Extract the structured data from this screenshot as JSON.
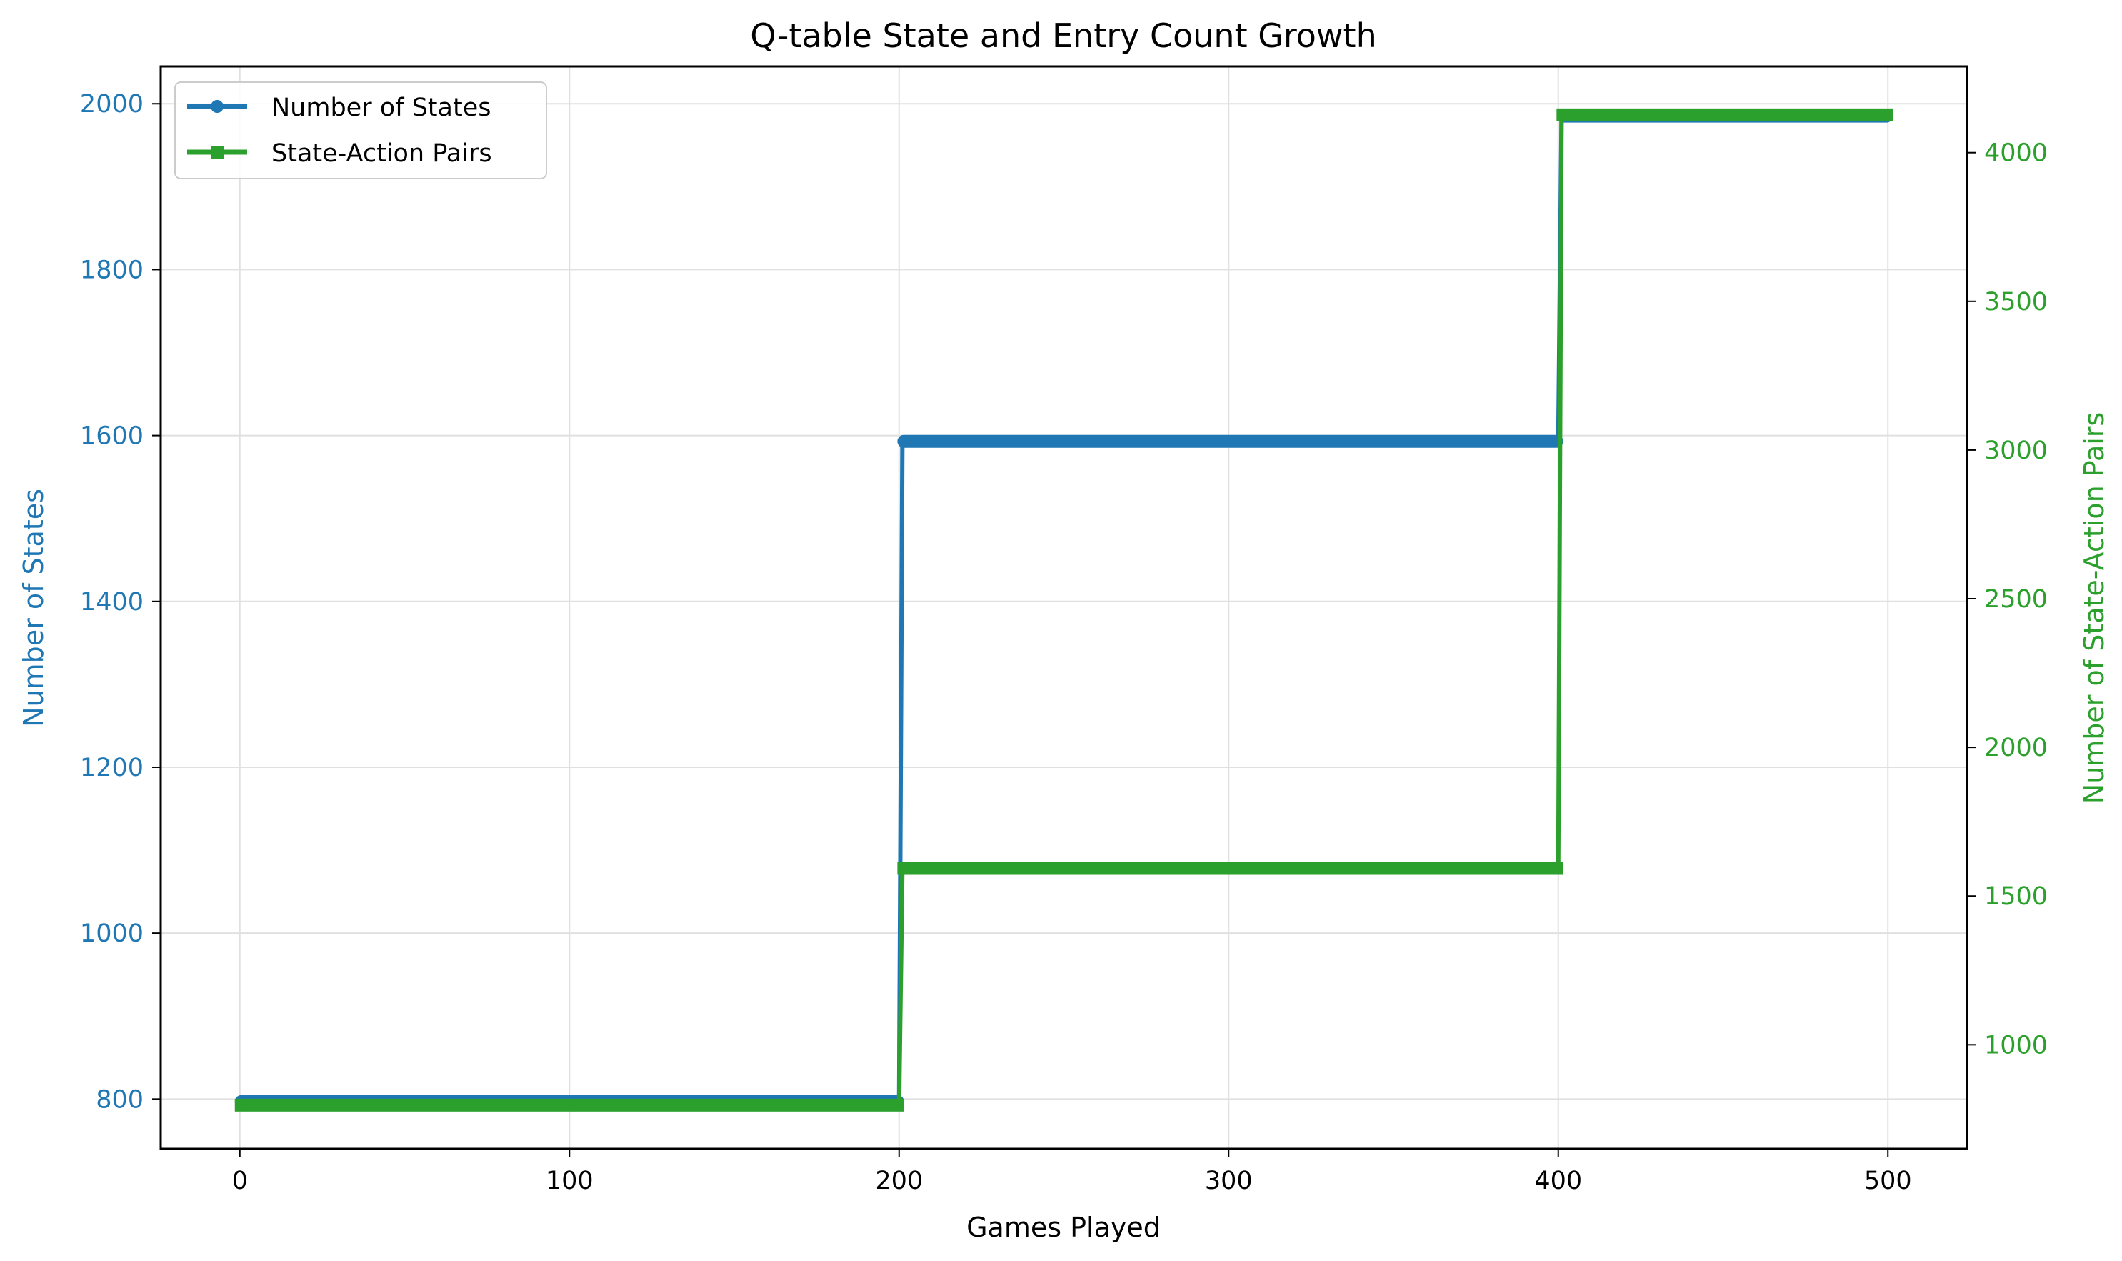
{
  "chart_data": {
    "type": "line",
    "title": "Q-table State and Entry Count Growth",
    "xlabel": "Games Played",
    "ylabel_left": "Number of States",
    "ylabel_right": "Number of State-Action Pairs",
    "xlim": [
      -24,
      524
    ],
    "ylim_left": [
      740,
      2045
    ],
    "ylim_right": [
      650,
      4290
    ],
    "x_ticks": [
      0,
      100,
      200,
      300,
      400,
      500
    ],
    "y_ticks_left": [
      800,
      1000,
      1200,
      1400,
      1600,
      1800,
      2000
    ],
    "y_ticks_right": [
      1000,
      1500,
      2000,
      2500,
      3000,
      3500,
      4000
    ],
    "grid": true,
    "legend_position": "top-left",
    "series": [
      {
        "name": "Number of States",
        "axis": "left",
        "color": "#1f77b4",
        "marker": "circle",
        "segments": [
          {
            "x": [
              0,
              200
            ],
            "y": 797
          },
          {
            "x": [
              201,
              400
            ],
            "y": 1593
          },
          {
            "x": [
              401,
              500
            ],
            "y": 1985
          }
        ]
      },
      {
        "name": "State-Action Pairs",
        "axis": "right",
        "color": "#2ca02c",
        "marker": "square",
        "segments": [
          {
            "x": [
              0,
              200
            ],
            "y": 797
          },
          {
            "x": [
              201,
              400
            ],
            "y": 1593
          },
          {
            "x": [
              401,
              500
            ],
            "y": 4127
          }
        ]
      }
    ],
    "colors": {
      "left_axis": "#1f77b4",
      "right_axis": "#2ca02c",
      "grid": "#e0e0e0",
      "axis_line": "#000000"
    }
  }
}
